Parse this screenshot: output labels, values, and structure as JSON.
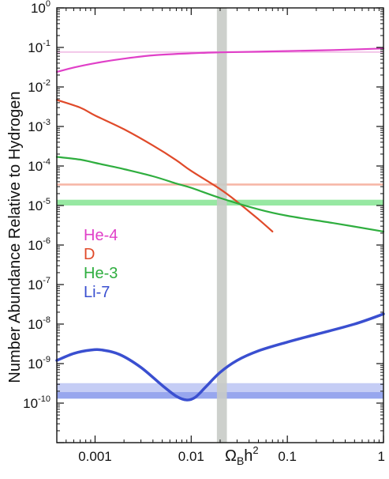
{
  "chart_data": {
    "type": "line",
    "xlabel": {
      "base": "Ω",
      "sub": "B",
      "main": "h",
      "sup": "2"
    },
    "ylabel": "Number Abundance Relative to Hydrogen",
    "xscale": "log",
    "yscale": "log",
    "xlim": [
      0.0004,
      1
    ],
    "ylim": [
      1e-11,
      1
    ],
    "x_ticks": [
      {
        "value": 0.001,
        "label": "0.001"
      },
      {
        "value": 0.01,
        "label": "0.01"
      },
      {
        "value": 0.1,
        "label": "0.1"
      },
      {
        "value": 1,
        "label": "1"
      }
    ],
    "y_ticks": [
      {
        "value": 1,
        "base": "10",
        "exp": "0"
      },
      {
        "value": 0.1,
        "base": "10",
        "exp": "-1"
      },
      {
        "value": 0.01,
        "base": "10",
        "exp": "-2"
      },
      {
        "value": 0.001,
        "base": "10",
        "exp": "-3"
      },
      {
        "value": 0.0001,
        "base": "10",
        "exp": "-4"
      },
      {
        "value": 1e-05,
        "base": "10",
        "exp": "-5"
      },
      {
        "value": 1e-06,
        "base": "10",
        "exp": "-6"
      },
      {
        "value": 1e-07,
        "base": "10",
        "exp": "-7"
      },
      {
        "value": 1e-08,
        "base": "10",
        "exp": "-8"
      },
      {
        "value": 1e-09,
        "base": "10",
        "exp": "-9"
      },
      {
        "value": 1e-10,
        "base": "10",
        "exp": "-10"
      }
    ],
    "grid": false,
    "legend_placement": "left",
    "series": [
      {
        "name": "He-4",
        "color": "#e040c8",
        "x": [
          0.0004,
          0.0006,
          0.001,
          0.002,
          0.004,
          0.01,
          0.02,
          0.05,
          0.1,
          0.3,
          1
        ],
        "y": [
          0.024,
          0.031,
          0.04,
          0.052,
          0.063,
          0.071,
          0.075,
          0.078,
          0.081,
          0.086,
          0.094
        ]
      },
      {
        "name": "D",
        "color": "#e04a2a",
        "x": [
          0.0004,
          0.0007,
          0.001,
          0.002,
          0.004,
          0.007,
          0.01,
          0.02,
          0.03,
          0.05,
          0.07
        ],
        "y": [
          0.0047,
          0.003,
          0.0019,
          0.00085,
          0.00033,
          0.00014,
          7.5e-05,
          2.6e-05,
          1.25e-05,
          4.5e-06,
          2.2e-06
        ]
      },
      {
        "name": "He-3",
        "color": "#2fae3f",
        "x": [
          0.0004,
          0.0007,
          0.001,
          0.002,
          0.004,
          0.007,
          0.01,
          0.02,
          0.05,
          0.1,
          0.3,
          1
        ],
        "y": [
          0.00017,
          0.000145,
          0.00012,
          8.3e-05,
          5.5e-05,
          3.6e-05,
          2.8e-05,
          1.55e-05,
          8e-06,
          5.5e-06,
          3.6e-06,
          2.2e-06
        ]
      },
      {
        "name": "Li-7",
        "color": "#3a4fd0",
        "x": [
          0.0004,
          0.0006,
          0.0009,
          0.0012,
          0.0018,
          0.003,
          0.005,
          0.007,
          0.009,
          0.011,
          0.014,
          0.02,
          0.03,
          0.05,
          0.1,
          0.2,
          0.5,
          1
        ],
        "y": [
          1.2e-09,
          1.8e-09,
          2.2e-09,
          2.2e-09,
          1.7e-09,
          8e-10,
          2.8e-10,
          1.5e-10,
          1.2e-10,
          1.4e-10,
          2.5e-10,
          6e-10,
          1.2e-09,
          2.1e-09,
          3.5e-09,
          5.5e-09,
          1e-08,
          1.8e-08
        ]
      }
    ],
    "observation_bands": [
      {
        "series": "He-4",
        "color": "#f3c6e8",
        "y_low": 0.075,
        "y_high": 0.08
      },
      {
        "series": "D",
        "color": "#f6b6a6",
        "y_low": 3.2e-05,
        "y_high": 3.6e-05
      },
      {
        "series": "He-3",
        "color": "#97e8a2",
        "y_low": 1e-05,
        "y_high": 1.4e-05
      },
      {
        "series": "Li-7",
        "color": "#c5cdf5",
        "y_low": 1.3e-10,
        "y_high": 3.2e-10
      },
      {
        "series": "Li-7",
        "color": "#97a6ee",
        "y_low": 1.3e-10,
        "y_high": 1.9e-10
      }
    ],
    "vertical_band": {
      "color": "#c8cbc6",
      "x_low": 0.0185,
      "x_high": 0.0235
    }
  }
}
